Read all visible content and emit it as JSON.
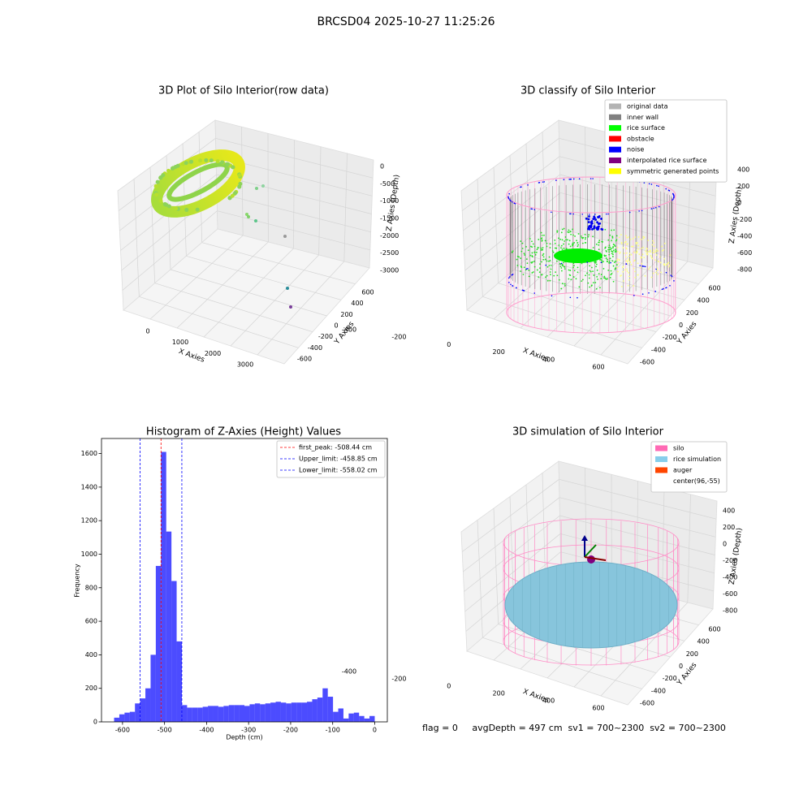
{
  "title": "BRCSD04 2025-10-27 11:25:26",
  "footer": "flag = 0     avgDepth = 497 cm  sv1 = 700~2300  sv2 = 700~2300",
  "chart_data": [
    {
      "type": "scatter3d",
      "title": "3D Plot of Silo Interior(row data)",
      "x_label": "X Axies",
      "y_label": "Y Axies",
      "z_label": "Z Axies (Depth)",
      "xticks": [
        0,
        1000,
        2000,
        3000
      ],
      "yticks": [
        -600,
        -400,
        -200,
        0,
        200,
        400,
        600
      ],
      "zticks": [
        0,
        -500,
        -1000,
        -1500,
        -2000,
        -2500,
        -3000
      ]
    },
    {
      "type": "scatter3d",
      "title": "3D classify of Silo Interior",
      "x_label": "X Axies",
      "y_label": "Y Axies",
      "z_label": "Z Axies (Depth)",
      "xticks": [
        -400,
        -200,
        0,
        200,
        400,
        600
      ],
      "yticks": [
        -600,
        -400,
        -200,
        0,
        200,
        400,
        600
      ],
      "zticks": [
        400,
        200,
        0,
        -200,
        -400,
        -600,
        -800
      ],
      "legend": [
        {
          "name": "original data",
          "color": "#b3b3b3"
        },
        {
          "name": "inner wall",
          "color": "#808080"
        },
        {
          "name": "rice surface",
          "color": "#00ff00"
        },
        {
          "name": "obstacle",
          "color": "#ff0000"
        },
        {
          "name": "noise",
          "color": "#0000ff"
        },
        {
          "name": "interpolated rice surface",
          "color": "#800080"
        },
        {
          "name": "symmetric generated points",
          "color": "#ffff00"
        }
      ]
    },
    {
      "type": "histogram",
      "title": "Histogram of Z-Axies (Height) Values",
      "x_label": "Depth (cm)",
      "y_label": "Frequency",
      "color": "#0000ff",
      "alpha": 0.7,
      "bins": [
        -620,
        -607.6,
        -595.2,
        -582.8,
        -570.4,
        -558,
        -545.6,
        -533.2,
        -520.8,
        -508.4,
        -496,
        -483.6,
        -471.2,
        -458.8,
        -446.4,
        -434,
        -421.6,
        -409.2,
        -396.8,
        -384.4,
        -372,
        -359.6,
        -347.2,
        -334.8,
        -322.4,
        -310,
        -297.6,
        -285.2,
        -272.8,
        -260.4,
        -248,
        -235.6,
        -223.2,
        -210.8,
        -198.4,
        -186,
        -173.6,
        -161.2,
        -148.8,
        -136.4,
        -124,
        -111.6,
        -99.2,
        -86.8,
        -74.4,
        -62,
        -49.6,
        -37.2,
        -24.8,
        -12.4,
        0
      ],
      "counts": [
        25,
        45,
        55,
        60,
        110,
        140,
        200,
        400,
        930,
        1610,
        1135,
        840,
        480,
        100,
        85,
        85,
        85,
        90,
        95,
        95,
        90,
        95,
        100,
        100,
        100,
        95,
        105,
        110,
        105,
        110,
        115,
        120,
        115,
        110,
        115,
        115,
        115,
        120,
        135,
        145,
        200,
        150,
        60,
        80,
        20,
        50,
        55,
        35,
        20,
        35
      ],
      "xlim": [
        -650,
        30
      ],
      "ylim": [
        0,
        1690
      ],
      "xticks": [
        -600,
        -500,
        -400,
        -300,
        -200,
        -100,
        0
      ],
      "yticks": [
        0,
        200,
        400,
        600,
        800,
        1000,
        1200,
        1400,
        1600
      ],
      "vlines": [
        {
          "label": "first_peak: -508.44 cm",
          "value": -508.44,
          "color": "#ff0000"
        },
        {
          "label": "Upper_limit: -458.85 cm",
          "value": -458.85,
          "color": "#0000ff"
        },
        {
          "label": "Lower_limit: -558.02 cm",
          "value": -558.02,
          "color": "#0000ff"
        }
      ],
      "legend_position": "upper right"
    },
    {
      "type": "surface3d",
      "title": "3D simulation of Silo Interior",
      "x_label": "X Axies",
      "y_label": "Y Axies",
      "z_label": "Z Axies (Depth)",
      "xticks": [
        -400,
        -200,
        0,
        200,
        400,
        600
      ],
      "yticks": [
        -600,
        -400,
        -200,
        0,
        200,
        400,
        600
      ],
      "zticks": [
        400,
        200,
        0,
        -200,
        -400,
        -600,
        -800
      ],
      "legend": [
        {
          "name": "silo",
          "color": "#ff69b4"
        },
        {
          "name": "rice simulation",
          "color": "#87ceeb"
        },
        {
          "name": "auger",
          "color": "#ff4500"
        },
        {
          "name": "center(96,-55)",
          "color": "#ffffff"
        }
      ]
    }
  ]
}
